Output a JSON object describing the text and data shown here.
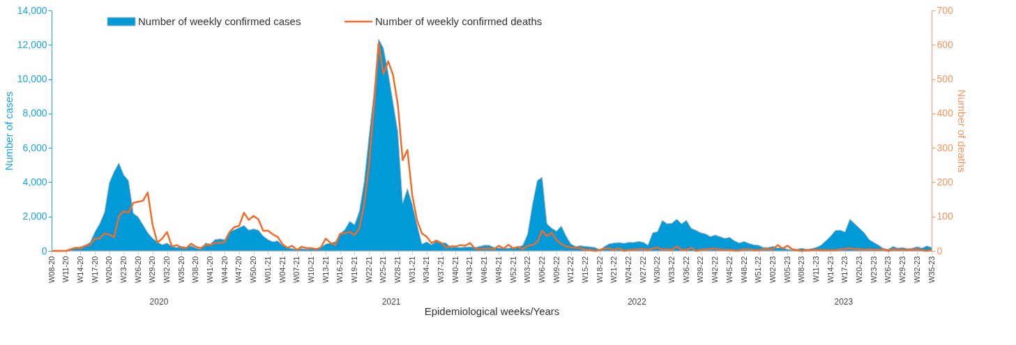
{
  "chart_data": {
    "type": "area",
    "xlabel": "Epidemiological weeks/Years",
    "ylabel": "Number of cases",
    "y2label": "Number of deaths",
    "categories": [
      "W08-20",
      null,
      null,
      "W11-20",
      null,
      null,
      "W14-20",
      null,
      null,
      "W17-20",
      null,
      null,
      "W20-20",
      null,
      null,
      "W23-20",
      null,
      null,
      "W26-20",
      null,
      null,
      "W29-20",
      null,
      null,
      "W32-20",
      null,
      null,
      "W35-20",
      null,
      null,
      "W38-20",
      null,
      null,
      "W41-20",
      null,
      null,
      "W44-20",
      null,
      null,
      "W47-20",
      null,
      null,
      "W50-20",
      null,
      null,
      "W01-21",
      null,
      null,
      "W04-21",
      null,
      null,
      "W07-21",
      null,
      null,
      "W10-21",
      null,
      null,
      "W13-21",
      null,
      null,
      "W16-21",
      null,
      null,
      "W19-21",
      null,
      null,
      "W22-21",
      null,
      null,
      "W25-21",
      null,
      null,
      "W28-21",
      null,
      null,
      "W31-21",
      null,
      null,
      "W34-21",
      null,
      null,
      "W37-21",
      null,
      null,
      "W40-21",
      null,
      null,
      "W43-21",
      null,
      null,
      "W46-21",
      null,
      null,
      "W49-21",
      null,
      null,
      "W52-21",
      null,
      null,
      "W03-22",
      null,
      null,
      "W06-22",
      null,
      null,
      "W09-22",
      null,
      null,
      "W12-22",
      null,
      null,
      "W15-22",
      null,
      null,
      "W18-22",
      null,
      null,
      "W21-22",
      null,
      null,
      "W24-22",
      null,
      null,
      "W27-22",
      null,
      null,
      "W30-22",
      null,
      null,
      "W33-22",
      null,
      null,
      "W36-22",
      null,
      null,
      "W39-22",
      null,
      null,
      "W42-22",
      null,
      null,
      "W45-22",
      null,
      null,
      "W48-22",
      null,
      null,
      "W51-22",
      null,
      null,
      "W02-23",
      null,
      null,
      "W05-23",
      null,
      null,
      "W08-23",
      null,
      null,
      "W11-23",
      null,
      null,
      "W14-23",
      null,
      null,
      "W17-23",
      null,
      null,
      "W20-23",
      null,
      null,
      "W23-23",
      null,
      null,
      "W26-23",
      null,
      null,
      "W29-23",
      null,
      null,
      "W32-23",
      null,
      null,
      "W35-23"
    ],
    "series": [
      {
        "name": "Number of weekly confirmed cases",
        "color": "#009ad8",
        "values": [
          0,
          0,
          0,
          0,
          100,
          200,
          240,
          330,
          490,
          1100,
          1580,
          2240,
          3960,
          4620,
          5120,
          4420,
          4090,
          2180,
          1980,
          1520,
          1060,
          730,
          530,
          360,
          460,
          260,
          200,
          260,
          220,
          300,
          170,
          100,
          460,
          400,
          660,
          700,
          660,
          1120,
          1230,
          1350,
          1480,
          1210,
          1280,
          1210,
          860,
          660,
          530,
          590,
          330,
          200,
          130,
          90,
          130,
          100,
          130,
          100,
          200,
          400,
          460,
          530,
          990,
          1250,
          1720,
          1520,
          2310,
          4030,
          6670,
          9170,
          12340,
          11810,
          10360,
          8650,
          6930,
          2770,
          3630,
          2710,
          1520,
          400,
          530,
          360,
          570,
          490,
          460,
          200,
          220,
          200,
          220,
          240,
          200,
          260,
          330,
          330,
          200,
          170,
          160,
          160,
          200,
          220,
          330,
          990,
          2710,
          4090,
          4290,
          1580,
          1320,
          1150,
          1450,
          860,
          400,
          260,
          300,
          260,
          240,
          200,
          70,
          260,
          420,
          460,
          490,
          440,
          500,
          490,
          550,
          510,
          330,
          1060,
          1120,
          1780,
          1580,
          1610,
          1850,
          1580,
          1780,
          1320,
          1200,
          1060,
          990,
          830,
          920,
          830,
          730,
          790,
          590,
          460,
          550,
          440,
          360,
          330,
          200,
          200,
          260,
          170,
          200,
          90,
          70,
          100,
          160,
          90,
          130,
          200,
          330,
          590,
          860,
          1190,
          1210,
          1100,
          1850,
          1580,
          1320,
          1060,
          660,
          490,
          330,
          130,
          100,
          260,
          160,
          200,
          130,
          160,
          240,
          160,
          290,
          200
        ]
      },
      {
        "name": "Number of weekly confirmed deaths",
        "type": "line",
        "axis": "y2",
        "color": "#f26b2a",
        "values": [
          0,
          0,
          0,
          0,
          5,
          9,
          7,
          15,
          17,
          36,
          36,
          51,
          48,
          40,
          101,
          116,
          111,
          140,
          143,
          146,
          170,
          76,
          24,
          36,
          55,
          13,
          17,
          10,
          8,
          21,
          12,
          8,
          17,
          17,
          23,
          23,
          26,
          55,
          69,
          73,
          111,
          90,
          102,
          92,
          59,
          59,
          48,
          41,
          20,
          9,
          15,
          3,
          12,
          8,
          8,
          5,
          10,
          36,
          23,
          17,
          50,
          51,
          56,
          46,
          66,
          135,
          248,
          413,
          604,
          515,
          552,
          512,
          426,
          264,
          294,
          162,
          89,
          51,
          41,
          23,
          30,
          23,
          10,
          13,
          13,
          17,
          15,
          23,
          7,
          5,
          7,
          7,
          5,
          15,
          7,
          18,
          7,
          12,
          5,
          15,
          17,
          26,
          59,
          43,
          53,
          32,
          20,
          13,
          10,
          9,
          8,
          3,
          3,
          0,
          3,
          7,
          7,
          3,
          8,
          0,
          3,
          3,
          5,
          5,
          3,
          7,
          10,
          3,
          5,
          3,
          13,
          3,
          3,
          9,
          0,
          3,
          5,
          5,
          7,
          3,
          3,
          3,
          1,
          1,
          5,
          5,
          2,
          2,
          5,
          5,
          5,
          17,
          7,
          15,
          5,
          2,
          0,
          2,
          2,
          3,
          2,
          2,
          2,
          2,
          5,
          5,
          8,
          5,
          5,
          3,
          5,
          3,
          3,
          5,
          0,
          5,
          3,
          3,
          3,
          3,
          5,
          2,
          0,
          3
        ]
      }
    ],
    "ylim": [
      0,
      14000
    ],
    "yticks": [
      0,
      {
        "value": 2000,
        "label": "2,000"
      },
      {
        "value": 4000,
        "label": "4,000"
      },
      {
        "value": 6000,
        "label": "6,000"
      },
      {
        "value": 8000,
        "label": "8,000"
      },
      {
        "value": 10000,
        "label": "10,000"
      },
      {
        "value": 12000,
        "label": "12,000"
      },
      {
        "value": 14000,
        "label": "14,000"
      }
    ],
    "y2lim": [
      0,
      700
    ],
    "y2ticks": [
      0,
      100,
      200,
      300,
      400,
      500,
      600,
      700
    ],
    "legend": "top",
    "annotations": [
      "2020",
      "2021",
      "2022",
      "2023"
    ]
  }
}
